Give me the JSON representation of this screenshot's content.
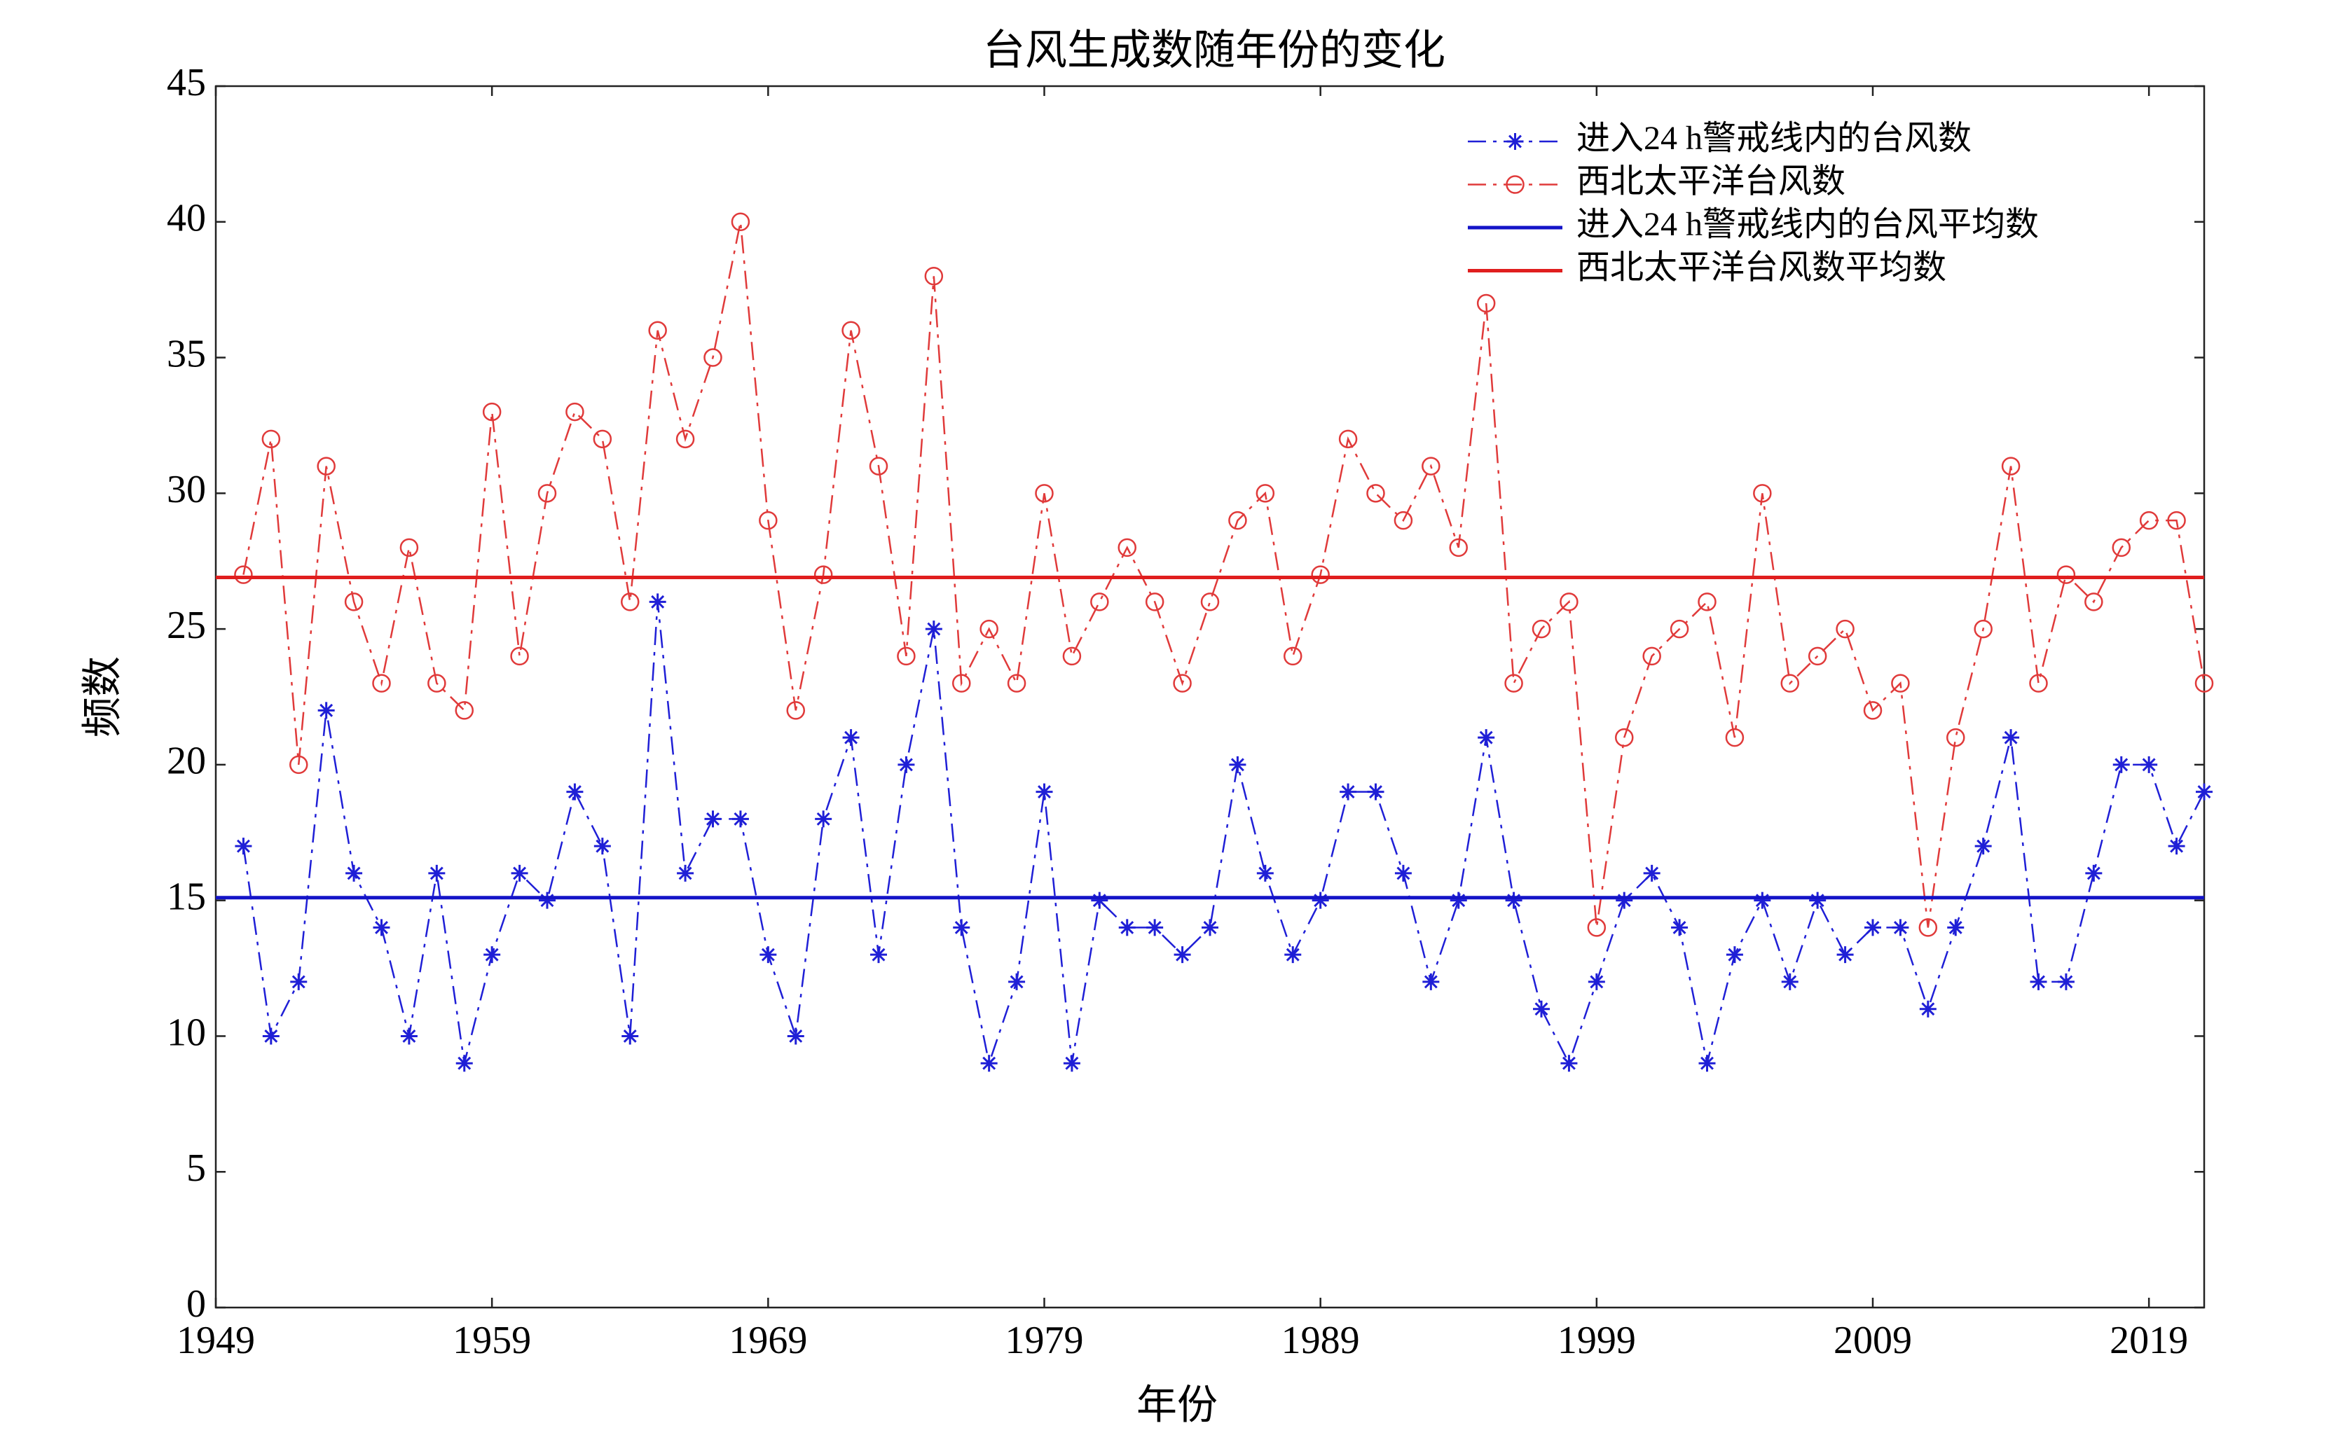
{
  "chart_data": {
    "type": "line",
    "title": "台风生成数随年份的变化",
    "xlabel": "年份",
    "ylabel": "频数",
    "x": [
      1950,
      1951,
      1952,
      1953,
      1954,
      1955,
      1956,
      1957,
      1958,
      1959,
      1960,
      1961,
      1962,
      1963,
      1964,
      1965,
      1966,
      1967,
      1968,
      1969,
      1970,
      1971,
      1972,
      1973,
      1974,
      1975,
      1976,
      1977,
      1978,
      1979,
      1980,
      1981,
      1982,
      1983,
      1984,
      1985,
      1986,
      1987,
      1988,
      1989,
      1990,
      1991,
      1992,
      1993,
      1994,
      1995,
      1996,
      1997,
      1998,
      1999,
      2000,
      2001,
      2002,
      2003,
      2004,
      2005,
      2006,
      2007,
      2008,
      2009,
      2010,
      2011,
      2012,
      2013,
      2014,
      2015,
      2016,
      2017,
      2018,
      2019,
      2020,
      2021
    ],
    "series": [
      {
        "name": "进入24 h警戒线内的台风数",
        "color": "#1f1fd6",
        "marker": "asterisk",
        "style": "dashdot",
        "values": [
          17,
          10,
          12,
          22,
          16,
          14,
          10,
          16,
          9,
          13,
          16,
          15,
          19,
          17,
          10,
          26,
          16,
          18,
          18,
          13,
          10,
          18,
          21,
          13,
          20,
          25,
          14,
          9,
          12,
          19,
          9,
          15,
          14,
          14,
          13,
          14,
          20,
          16,
          13,
          15,
          19,
          19,
          16,
          12,
          15,
          21,
          15,
          11,
          9,
          12,
          15,
          16,
          14,
          9,
          13,
          15,
          12,
          15,
          13,
          14,
          14,
          11,
          14,
          17,
          21,
          12,
          12,
          16,
          20,
          20,
          17,
          19
        ]
      },
      {
        "name": "西北太平洋台风数",
        "color": "#e03a3a",
        "marker": "circle",
        "style": "dashdot",
        "values": [
          27,
          32,
          20,
          31,
          26,
          23,
          28,
          23,
          22,
          33,
          24,
          30,
          33,
          32,
          26,
          36,
          32,
          35,
          40,
          29,
          22,
          27,
          36,
          31,
          24,
          38,
          23,
          25,
          23,
          30,
          24,
          26,
          28,
          26,
          23,
          26,
          29,
          30,
          24,
          27,
          32,
          30,
          29,
          31,
          28,
          37,
          23,
          25,
          26,
          14,
          21,
          24,
          25,
          26,
          21,
          30,
          23,
          24,
          25,
          22,
          23,
          14,
          21,
          25,
          31,
          23,
          27,
          26,
          28,
          29,
          29,
          23
        ]
      },
      {
        "name": "进入24 h警戒线内的台风平均数",
        "color": "#1414c8",
        "style": "solid",
        "value": 15.1
      },
      {
        "name": "西北太平洋台风数平均数",
        "color": "#e01e1e",
        "style": "solid",
        "value": 26.9
      }
    ],
    "xlim": [
      1949,
      2021
    ],
    "xticks": [
      1949,
      1959,
      1969,
      1979,
      1989,
      1999,
      2009,
      2019
    ],
    "ylim": [
      0,
      45
    ],
    "yticks": [
      0,
      5,
      10,
      15,
      20,
      25,
      30,
      35,
      40,
      45
    ],
    "legend": "upper right"
  }
}
